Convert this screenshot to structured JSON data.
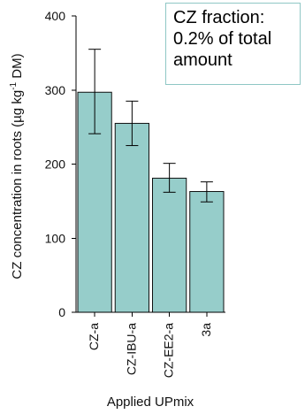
{
  "chart_data": {
    "type": "bar",
    "categories": [
      "CZ-a",
      "CZ-IBU-a",
      "CZ-EE2-a",
      "3a"
    ],
    "values": [
      297,
      255,
      181,
      163
    ],
    "error_bars": {
      "lower": [
        241,
        225,
        162,
        149
      ],
      "upper": [
        355,
        285,
        201,
        176
      ]
    },
    "title": "",
    "xlabel": "Applied UPmix",
    "ylabel": {
      "prefix": "CZ concentration in roots (µg kg",
      "superscript": "-1",
      "suffix": " DM)"
    },
    "ylim": [
      0,
      400
    ],
    "yticks": [
      "0",
      "100",
      "200",
      "300",
      "400"
    ],
    "grid": false,
    "annotation_lines": [
      "CZ fraction:",
      "0.2% of total",
      "amount"
    ],
    "colors": {
      "bar_fill": "#96cdca",
      "bar_stroke": "#1b1b1b",
      "axis": "#000000",
      "annotation_border": "#8fc7c5"
    }
  }
}
